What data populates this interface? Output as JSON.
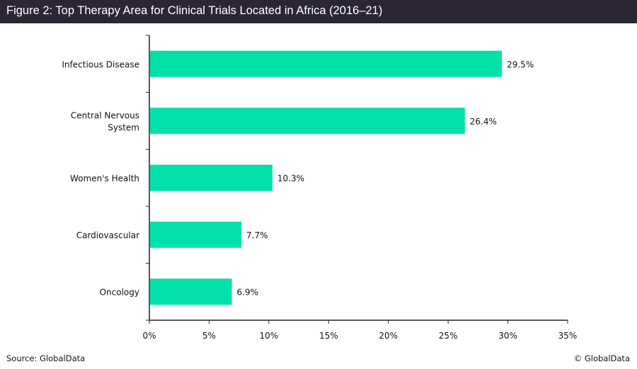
{
  "chart_data": {
    "type": "bar",
    "orientation": "horizontal",
    "title": "Figure 2: Top Therapy Area for Clinical Trials Located in Africa (2016–21)",
    "categories": [
      [
        "Infectious Disease"
      ],
      [
        "Central Nervous",
        "System"
      ],
      [
        "Women's Health"
      ],
      [
        "Cardiovascular"
      ],
      [
        "Oncology"
      ]
    ],
    "values": [
      29.5,
      26.4,
      10.3,
      7.7,
      6.9
    ],
    "data_labels": [
      "29.5%",
      "26.4%",
      "10.3%",
      "7.7%",
      "6.9%"
    ],
    "xlim": [
      0,
      35
    ],
    "x_ticks": [
      0,
      5,
      10,
      15,
      20,
      25,
      30,
      35
    ],
    "x_tick_labels": [
      "0%",
      "5%",
      "10%",
      "15%",
      "20%",
      "25%",
      "30%",
      "35%"
    ],
    "xlabel": "",
    "ylabel": "",
    "grid": false,
    "bar_color": "#00e0a8"
  },
  "footer": {
    "source": "Source: GlobalData",
    "copyright": "© GlobalData"
  }
}
